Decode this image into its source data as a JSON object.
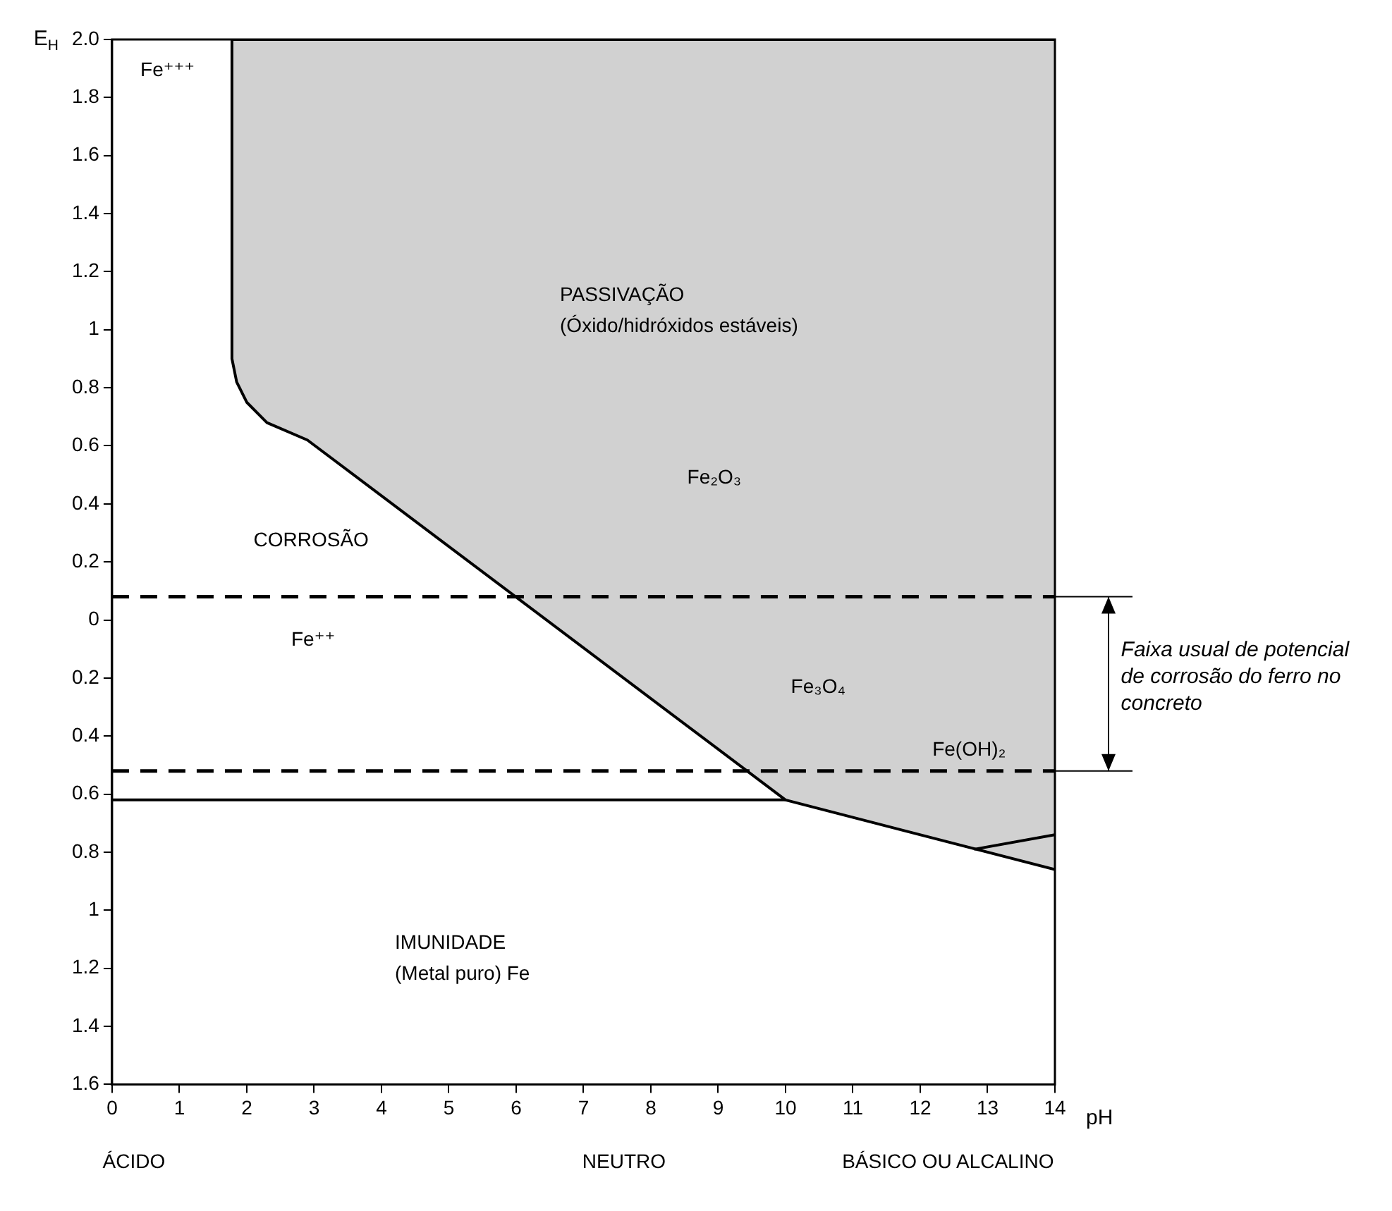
{
  "chart_data": {
    "type": "line",
    "xlabel": "pH",
    "ylabel": "E$_{H}$",
    "xlim": [
      0,
      14
    ],
    "xticks": [
      0,
      1,
      2,
      3,
      4,
      5,
      6,
      7,
      8,
      9,
      10,
      11,
      12,
      13,
      14
    ],
    "ylim": [
      -1.6,
      2.0
    ],
    "yticks": [
      {
        "value": 2.0,
        "label": "2.0"
      },
      1.8,
      1.6,
      1.4,
      1.2,
      1,
      0.8,
      0.6,
      0.4,
      0.2,
      0,
      {
        "value": -0.2,
        "label": "0.2"
      },
      {
        "value": -0.4,
        "label": "0.4"
      },
      {
        "value": -0.6,
        "label": "0.6"
      },
      {
        "value": -0.8,
        "label": "0.8"
      },
      {
        "value": -1,
        "label": "1"
      },
      {
        "value": -1.2,
        "label": "1.2"
      },
      {
        "value": -1.4,
        "label": "1.4"
      },
      {
        "value": -1.6,
        "label": "1.6"
      }
    ],
    "marker": "none",
    "series": [
      {
        "type": "area",
        "color": "#000000",
        "x": [
          14,
          1.78,
          1.78,
          1.85,
          2.0,
          2.3,
          2.9,
          10,
          14
        ],
        "values": [
          2.0,
          2.0,
          0.9,
          0.82,
          0.75,
          0.68,
          0.62,
          -0.62,
          -0.86
        ]
      },
      {
        "type": "line",
        "color": "#000000",
        "x": [
          0,
          10
        ],
        "values": [
          -0.62,
          -0.62
        ]
      },
      {
        "type": "line",
        "color": "#000000",
        "x": [
          12.8,
          14
        ],
        "values": [
          -0.79,
          -0.74
        ]
      }
    ],
    "ref_lines": [
      {
        "axis": "y",
        "value": 0.08,
        "line_style": "dashed"
      },
      {
        "axis": "y",
        "value": -0.52,
        "line_style": "dashed"
      }
    ],
    "annotations": [
      "Fe⁺⁺⁺",
      "PASSIVAÇÃO",
      "(Óxido/hidróxidos estáveis)",
      "CORROSÃO",
      "Fe₂O₃",
      "Fe⁺⁺",
      "Fe₃O₄",
      "Fe(OH)₂",
      "IMUNIDADE",
      "(Metal puro) Fe",
      "ÁCIDO",
      "NEUTRO",
      "BÁSICO OU ALCALINO",
      "Faixa usual de potencial de corrosão do ferro no concreto"
    ]
  }
}
